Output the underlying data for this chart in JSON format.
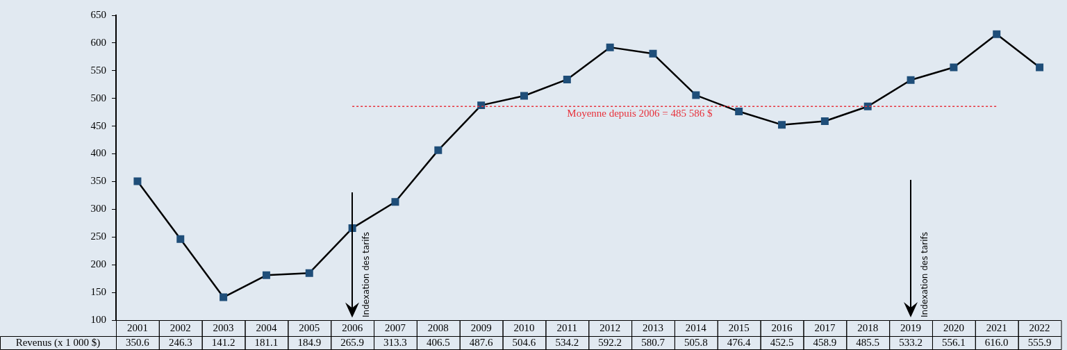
{
  "chart_data": {
    "type": "line",
    "categories": [
      "2001",
      "2002",
      "2003",
      "2004",
      "2005",
      "2006",
      "2007",
      "2008",
      "2009",
      "2010",
      "2011",
      "2012",
      "2013",
      "2014",
      "2015",
      "2016",
      "2017",
      "2018",
      "2019",
      "2020",
      "2021",
      "2022"
    ],
    "series": [
      {
        "color": "#000000",
        "colors": [
          "#1f4e79",
          "#1f4e79",
          "#1f4e79",
          "#1f4e79",
          "#1f4e79",
          "#1f4e79",
          "#1f4e79",
          "#1f4e79",
          "#1f4e79",
          "#1f4e79",
          "#1f4e79",
          "#1f4e79",
          "#1f4e79",
          "#1f4e79",
          "#1f4e79",
          "#1f4e79",
          "#1f4e79",
          "#1f4e79",
          "#1f4e79",
          "#1f4e79",
          "#1f4e79",
          "#1f4e79"
        ],
        "values": [
          350.6,
          246.3,
          141.2,
          181.1,
          184.9,
          265.9,
          313.3,
          406.5,
          487.6,
          504.6,
          534.2,
          592.2,
          580.7,
          505.8,
          476.4,
          452.5,
          458.9,
          485.5,
          533.2,
          556.1,
          616.0,
          555.9
        ],
        "value_labels": [
          "350.6",
          "246.3",
          "141.2",
          "181.1",
          "184.9",
          "265.9",
          "313.3",
          "406.5",
          "487.6",
          "504.6",
          "534.2",
          "592.2",
          "580.7",
          "505.8",
          "476.4",
          "452.5",
          "458.9",
          "485.5",
          "533.2",
          "556.1",
          "616.0",
          "555.9"
        ]
      }
    ],
    "ylim": [
      100,
      650
    ],
    "yticks": [
      100,
      150,
      200,
      250,
      300,
      350,
      400,
      450,
      500,
      550,
      600,
      650
    ],
    "marker": "square",
    "line_style": "solid",
    "legend": false,
    "grid": false,
    "ref_lines": [
      {
        "axis": "y",
        "value": 485.586,
        "label": "Moyenne depuis 2006 = 485 586 $",
        "color": "#e8303a",
        "line_style": "dotted"
      }
    ],
    "annotations": [
      "Revenus (x 1 000 $)",
      "Indexation des tarifs",
      "Indexation des tarifs"
    ]
  }
}
